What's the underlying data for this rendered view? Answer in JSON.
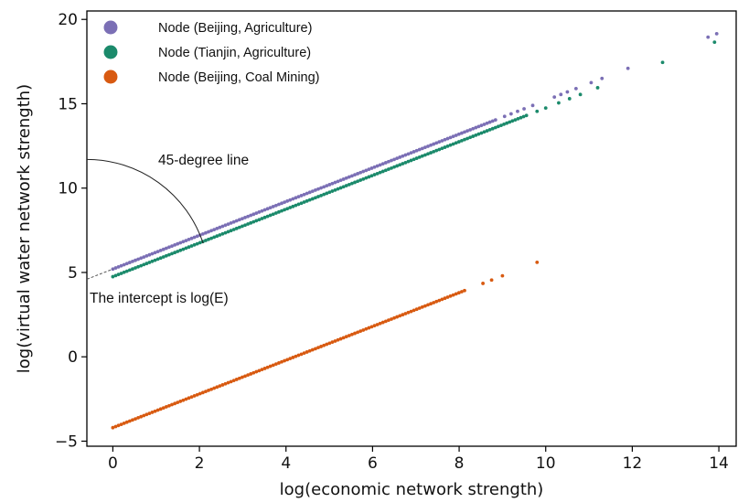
{
  "chart_data": {
    "type": "scatter",
    "xlabel": "log(economic network strength)",
    "ylabel": "log(virtual water network strength)",
    "xlim": [
      -0.6,
      14.4
    ],
    "ylim": [
      -5.3,
      20.5
    ],
    "xticks": [
      0,
      2,
      4,
      6,
      8,
      10,
      12,
      14
    ],
    "yticks": [
      -5,
      0,
      5,
      10,
      15,
      20
    ],
    "xtick_labels": [
      "0",
      "2",
      "4",
      "6",
      "8",
      "10",
      "12",
      "14"
    ],
    "ytick_labels": [
      "−5",
      "0",
      "5",
      "10",
      "15",
      "20"
    ],
    "grid": false,
    "legend_position": "top-left",
    "series": [
      {
        "name": "Node (Beijing, Agriculture)",
        "color": "#7b6fb5",
        "intercept": 5.2,
        "dense_range": [
          0,
          8.9
        ],
        "sparse_points": [
          [
            9.05,
            14.25
          ],
          [
            9.2,
            14.4
          ],
          [
            9.35,
            14.55
          ],
          [
            9.5,
            14.7
          ],
          [
            9.7,
            14.9
          ],
          [
            10.2,
            15.4
          ],
          [
            10.35,
            15.55
          ],
          [
            10.5,
            15.7
          ],
          [
            10.7,
            15.9
          ],
          [
            11.05,
            16.25
          ],
          [
            11.3,
            16.5
          ],
          [
            11.9,
            17.1
          ],
          [
            13.75,
            18.95
          ],
          [
            13.95,
            19.15
          ]
        ]
      },
      {
        "name": "Node (Tianjin, Agriculture)",
        "color": "#1b8a6b",
        "intercept": 4.75,
        "dense_range": [
          0,
          9.6
        ],
        "sparse_points": [
          [
            9.8,
            14.55
          ],
          [
            10.0,
            14.75
          ],
          [
            10.3,
            15.05
          ],
          [
            10.55,
            15.3
          ],
          [
            10.8,
            15.55
          ],
          [
            11.2,
            15.95
          ],
          [
            12.7,
            17.45
          ],
          [
            13.9,
            18.65
          ]
        ]
      },
      {
        "name": "Node (Beijing, Coal Mining)",
        "color": "#d85a11",
        "intercept": -4.2,
        "dense_range": [
          0,
          8.15
        ],
        "sparse_points": [
          [
            8.55,
            4.35
          ],
          [
            8.75,
            4.55
          ],
          [
            9.0,
            4.8
          ],
          [
            9.8,
            5.6
          ]
        ]
      }
    ],
    "annotations": {
      "angle_label": "45-degree line",
      "intercept_label": "The intercept is log(E)"
    }
  }
}
